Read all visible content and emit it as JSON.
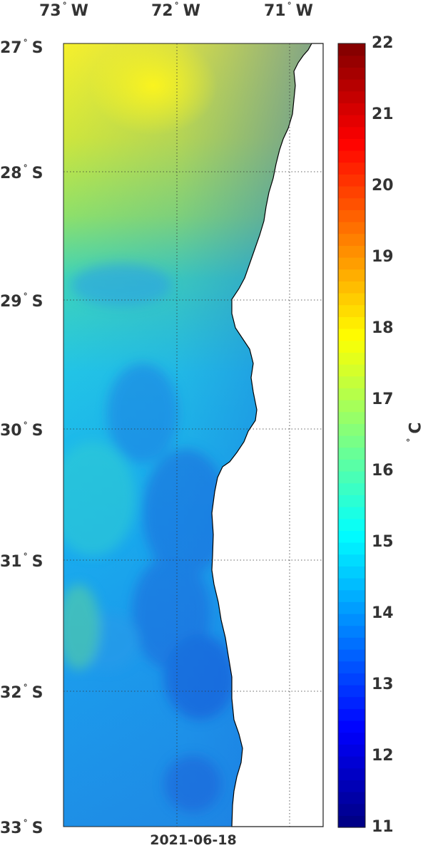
{
  "lon_labels": [
    {
      "deg": "73",
      "hemi": "W"
    },
    {
      "deg": "72",
      "hemi": "W"
    },
    {
      "deg": "71",
      "hemi": "W"
    }
  ],
  "lat_labels": [
    {
      "deg": "27",
      "hemi": "S"
    },
    {
      "deg": "28",
      "hemi": "S"
    },
    {
      "deg": "29",
      "hemi": "S"
    },
    {
      "deg": "30",
      "hemi": "S"
    },
    {
      "deg": "31",
      "hemi": "S"
    },
    {
      "deg": "32",
      "hemi": "S"
    },
    {
      "deg": "33",
      "hemi": "S"
    }
  ],
  "colorbar": {
    "ticks": [
      "22",
      "21",
      "20",
      "19",
      "18",
      "17",
      "16",
      "15",
      "14",
      "13",
      "12",
      "11"
    ],
    "min": 11,
    "max": 22,
    "unit_degree": "°",
    "unit_letter": "C"
  },
  "date": "2021-06-18",
  "colors": {
    "land": "#ffffff",
    "coast": "#000000",
    "grid": "#333333"
  }
}
